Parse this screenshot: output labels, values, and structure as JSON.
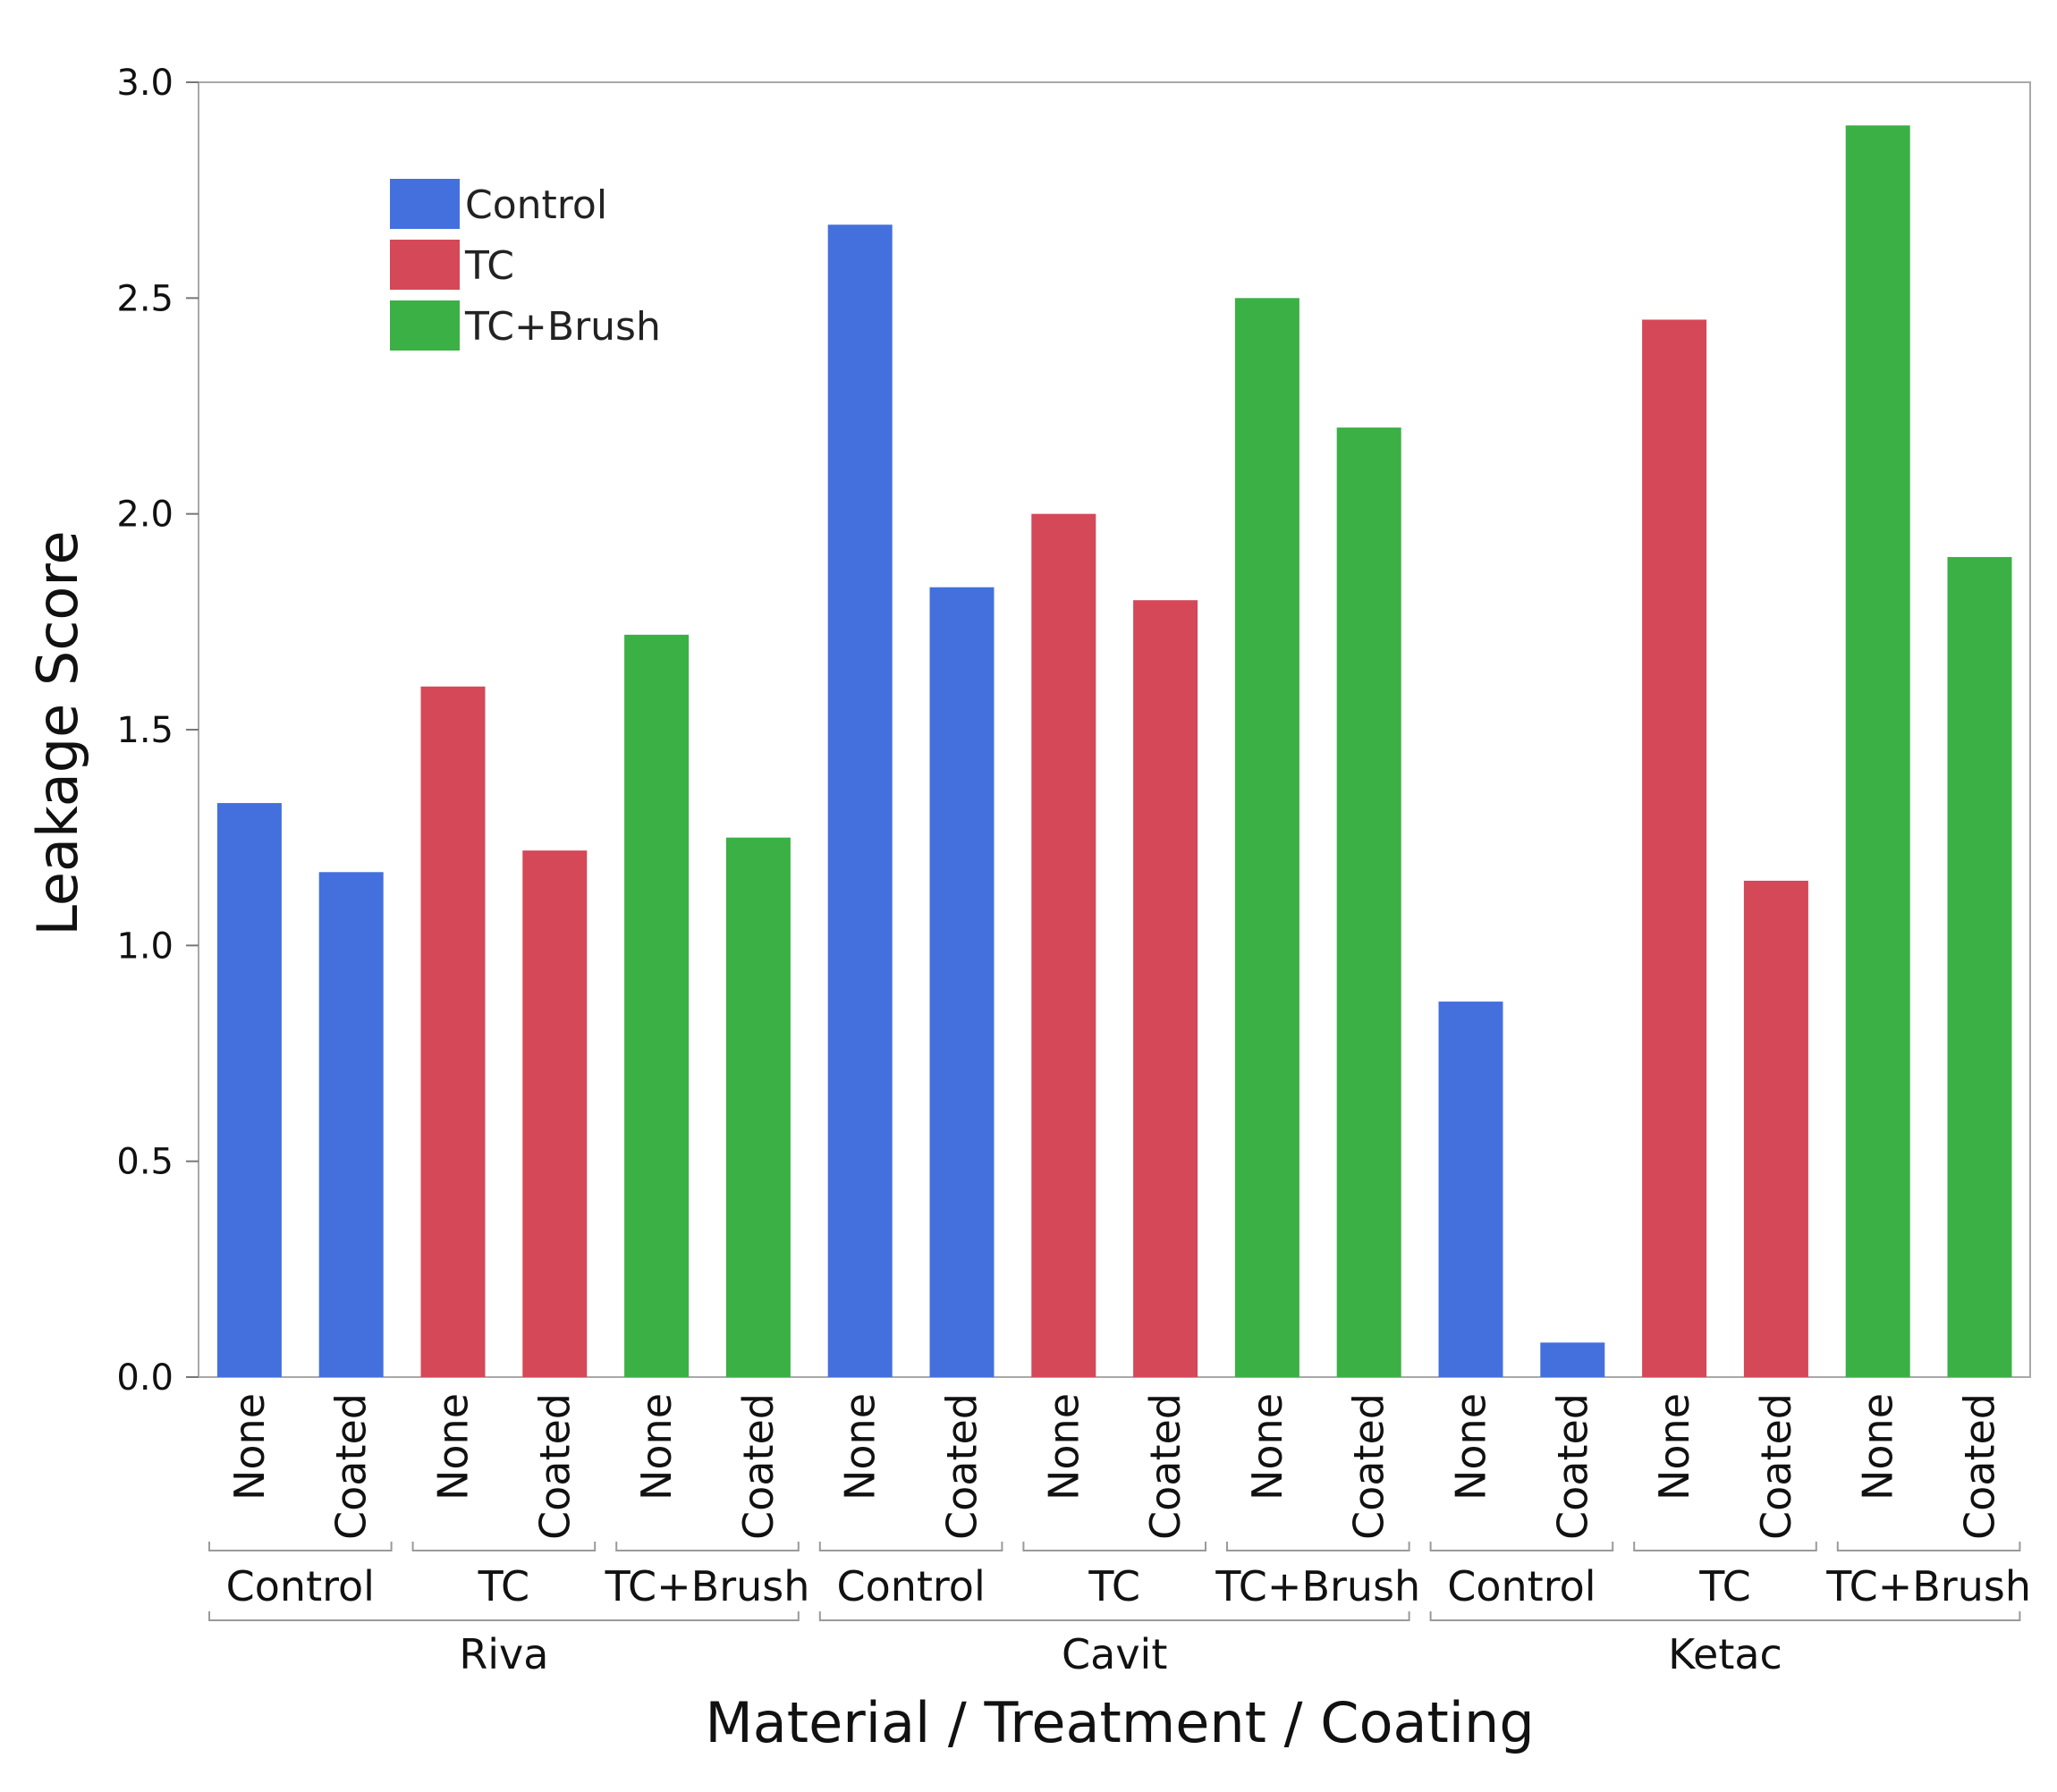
{
  "chart_data": {
    "type": "bar",
    "title": "",
    "xlabel": "Material / Treatment / Coating",
    "ylabel": "Leakage Score",
    "ylim": [
      0,
      3
    ],
    "yticks": [
      "0.0",
      "0.5",
      "1.0",
      "1.5",
      "2.0",
      "2.5",
      "3.0"
    ],
    "grid": false,
    "legend_position": "top-left",
    "legend": [
      {
        "name": "Control",
        "color": "#4470de"
      },
      {
        "name": "TC",
        "color": "#d44858"
      },
      {
        "name": "TC+Brush",
        "color": "#3bb045"
      }
    ],
    "materials": [
      "Riva",
      "Cavit",
      "Ketac"
    ],
    "treatments": [
      "Control",
      "TC",
      "TC+Brush"
    ],
    "coatings": [
      "None",
      "Coated"
    ],
    "bars": [
      {
        "material": "Riva",
        "treatment": "Control",
        "coating": "None",
        "value": 1.33
      },
      {
        "material": "Riva",
        "treatment": "Control",
        "coating": "Coated",
        "value": 1.17
      },
      {
        "material": "Riva",
        "treatment": "TC",
        "coating": "None",
        "value": 1.6
      },
      {
        "material": "Riva",
        "treatment": "TC",
        "coating": "Coated",
        "value": 1.22
      },
      {
        "material": "Riva",
        "treatment": "TC+Brush",
        "coating": "None",
        "value": 1.72
      },
      {
        "material": "Riva",
        "treatment": "TC+Brush",
        "coating": "Coated",
        "value": 1.25
      },
      {
        "material": "Cavit",
        "treatment": "Control",
        "coating": "None",
        "value": 2.67
      },
      {
        "material": "Cavit",
        "treatment": "Control",
        "coating": "Coated",
        "value": 1.83
      },
      {
        "material": "Cavit",
        "treatment": "TC",
        "coating": "None",
        "value": 2.0
      },
      {
        "material": "Cavit",
        "treatment": "TC",
        "coating": "Coated",
        "value": 1.8
      },
      {
        "material": "Cavit",
        "treatment": "TC+Brush",
        "coating": "None",
        "value": 2.5
      },
      {
        "material": "Cavit",
        "treatment": "TC+Brush",
        "coating": "Coated",
        "value": 2.2
      },
      {
        "material": "Ketac",
        "treatment": "Control",
        "coating": "None",
        "value": 0.87
      },
      {
        "material": "Ketac",
        "treatment": "Control",
        "coating": "Coated",
        "value": 0.08
      },
      {
        "material": "Ketac",
        "treatment": "TC",
        "coating": "None",
        "value": 2.45
      },
      {
        "material": "Ketac",
        "treatment": "TC",
        "coating": "Coated",
        "value": 1.15
      },
      {
        "material": "Ketac",
        "treatment": "TC+Brush",
        "coating": "None",
        "value": 2.9
      },
      {
        "material": "Ketac",
        "treatment": "TC+Brush",
        "coating": "Coated",
        "value": 1.9
      }
    ]
  }
}
